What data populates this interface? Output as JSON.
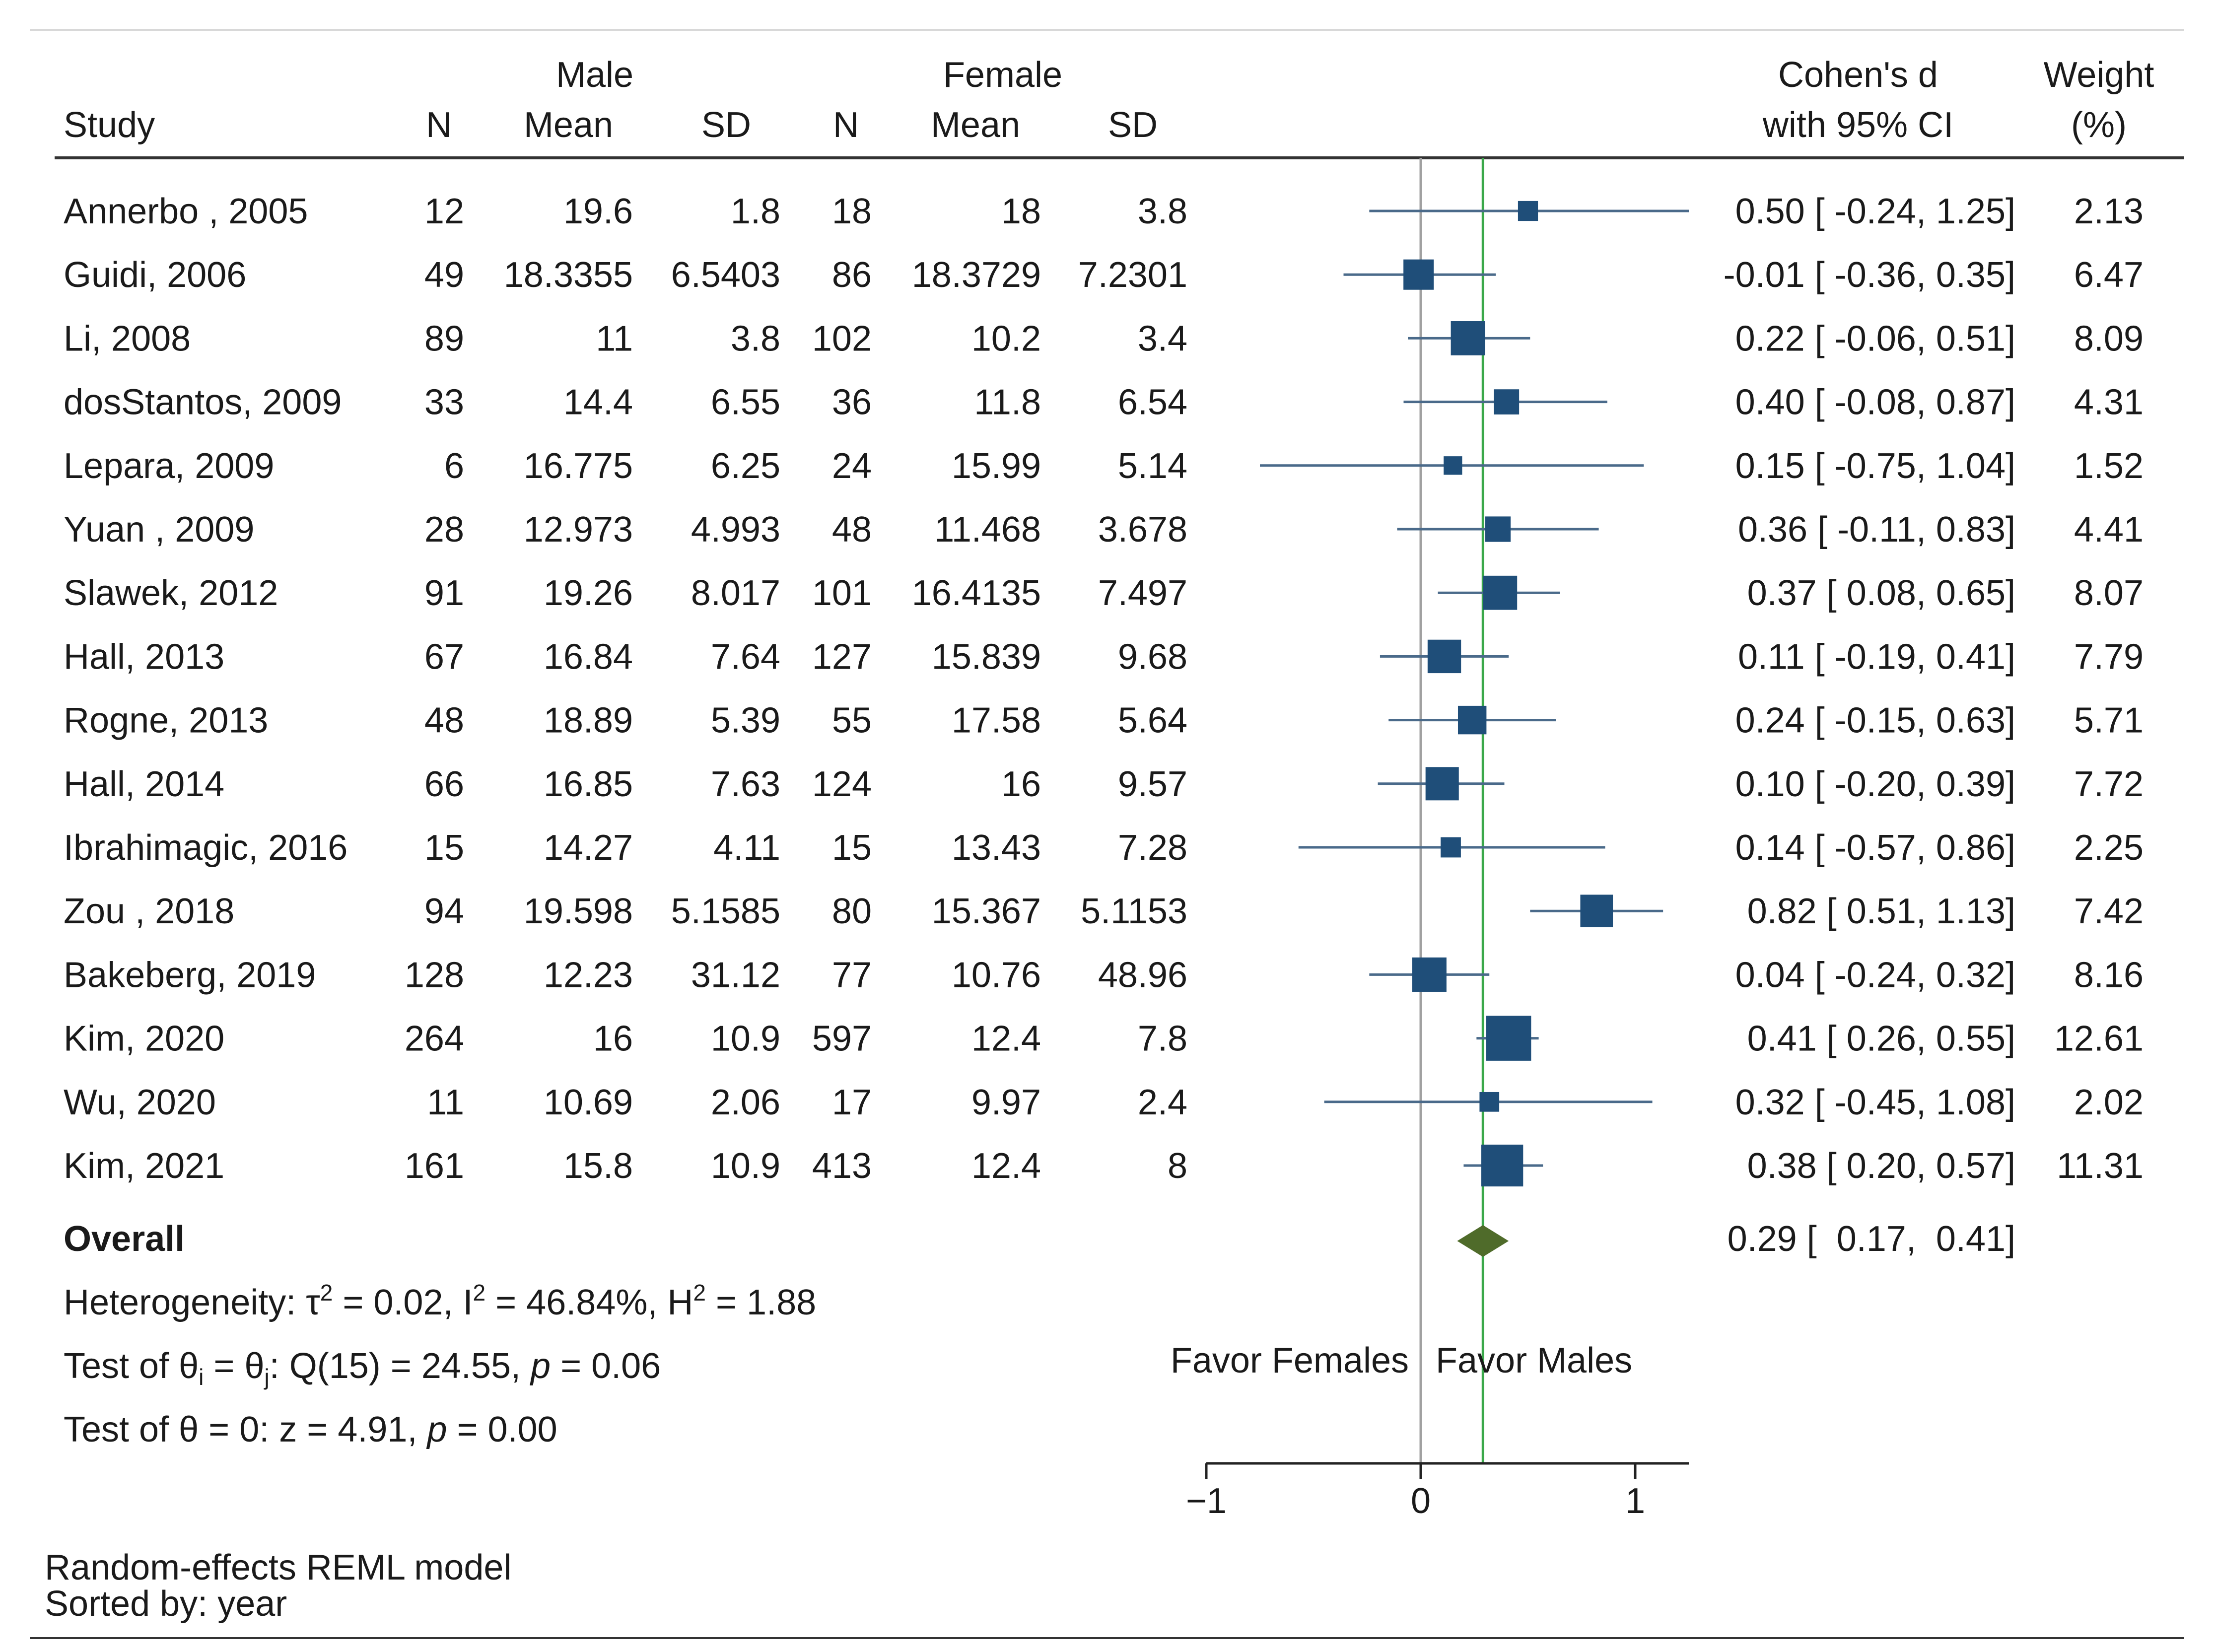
{
  "chart_data": {
    "type": "forest",
    "header": {
      "study": "Study",
      "male": "Male",
      "female": "Female",
      "n": "N",
      "mean": "Mean",
      "sd": "SD",
      "effect_line1": "Cohen's d",
      "effect_line2": "with 95% CI",
      "weight_line1": "Weight",
      "weight_line2": "(%)"
    },
    "studies": [
      {
        "study": "Annerbo , 2005",
        "male_n": "12",
        "male_mean": "19.6",
        "male_sd": "1.8",
        "female_n": "18",
        "female_mean": "18",
        "female_sd": "3.8",
        "d": 0.5,
        "lo": -0.24,
        "hi": 1.25,
        "ci_text": "0.50 [ -0.24,  1.25]",
        "weight": 2.13,
        "weight_text": "2.13"
      },
      {
        "study": "Guidi, 2006",
        "male_n": "49",
        "male_mean": "18.3355",
        "male_sd": "6.5403",
        "female_n": "86",
        "female_mean": "18.3729",
        "female_sd": "7.2301",
        "d": -0.01,
        "lo": -0.36,
        "hi": 0.35,
        "ci_text": "-0.01 [ -0.36,  0.35]",
        "weight": 6.47,
        "weight_text": "6.47"
      },
      {
        "study": "Li, 2008",
        "male_n": "89",
        "male_mean": "11",
        "male_sd": "3.8",
        "female_n": "102",
        "female_mean": "10.2",
        "female_sd": "3.4",
        "d": 0.22,
        "lo": -0.06,
        "hi": 0.51,
        "ci_text": "0.22 [ -0.06,  0.51]",
        "weight": 8.09,
        "weight_text": "8.09"
      },
      {
        "study": "dosStantos, 2009",
        "male_n": "33",
        "male_mean": "14.4",
        "male_sd": "6.55",
        "female_n": "36",
        "female_mean": "11.8",
        "female_sd": "6.54",
        "d": 0.4,
        "lo": -0.08,
        "hi": 0.87,
        "ci_text": "0.40 [ -0.08,  0.87]",
        "weight": 4.31,
        "weight_text": "4.31"
      },
      {
        "study": "Lepara, 2009",
        "male_n": "6",
        "male_mean": "16.775",
        "male_sd": "6.25",
        "female_n": "24",
        "female_mean": "15.99",
        "female_sd": "5.14",
        "d": 0.15,
        "lo": -0.75,
        "hi": 1.04,
        "ci_text": "0.15 [ -0.75,  1.04]",
        "weight": 1.52,
        "weight_text": "1.52"
      },
      {
        "study": "Yuan , 2009",
        "male_n": "28",
        "male_mean": "12.973",
        "male_sd": "4.993",
        "female_n": "48",
        "female_mean": "11.468",
        "female_sd": "3.678",
        "d": 0.36,
        "lo": -0.11,
        "hi": 0.83,
        "ci_text": "0.36 [ -0.11,  0.83]",
        "weight": 4.41,
        "weight_text": "4.41"
      },
      {
        "study": "Slawek, 2012",
        "male_n": "91",
        "male_mean": "19.26",
        "male_sd": "8.017",
        "female_n": "101",
        "female_mean": "16.4135",
        "female_sd": "7.497",
        "d": 0.37,
        "lo": 0.08,
        "hi": 0.65,
        "ci_text": "0.37 [  0.08,  0.65]",
        "weight": 8.07,
        "weight_text": "8.07"
      },
      {
        "study": "Hall, 2013",
        "male_n": "67",
        "male_mean": "16.84",
        "male_sd": "7.64",
        "female_n": "127",
        "female_mean": "15.839",
        "female_sd": "9.68",
        "d": 0.11,
        "lo": -0.19,
        "hi": 0.41,
        "ci_text": "0.11 [ -0.19,  0.41]",
        "weight": 7.79,
        "weight_text": "7.79"
      },
      {
        "study": "Rogne, 2013",
        "male_n": "48",
        "male_mean": "18.89",
        "male_sd": "5.39",
        "female_n": "55",
        "female_mean": "17.58",
        "female_sd": "5.64",
        "d": 0.24,
        "lo": -0.15,
        "hi": 0.63,
        "ci_text": "0.24 [ -0.15,  0.63]",
        "weight": 5.71,
        "weight_text": "5.71"
      },
      {
        "study": "Hall, 2014",
        "male_n": "66",
        "male_mean": "16.85",
        "male_sd": "7.63",
        "female_n": "124",
        "female_mean": "16",
        "female_sd": "9.57",
        "d": 0.1,
        "lo": -0.2,
        "hi": 0.39,
        "ci_text": "0.10 [ -0.20,  0.39]",
        "weight": 7.72,
        "weight_text": "7.72"
      },
      {
        "study": "Ibrahimagic, 2016",
        "male_n": "15",
        "male_mean": "14.27",
        "male_sd": "4.11",
        "female_n": "15",
        "female_mean": "13.43",
        "female_sd": "7.28",
        "d": 0.14,
        "lo": -0.57,
        "hi": 0.86,
        "ci_text": "0.14 [ -0.57,  0.86]",
        "weight": 2.25,
        "weight_text": "2.25"
      },
      {
        "study": "Zou , 2018",
        "male_n": "94",
        "male_mean": "19.598",
        "male_sd": "5.1585",
        "female_n": "80",
        "female_mean": "15.367",
        "female_sd": "5.1153",
        "d": 0.82,
        "lo": 0.51,
        "hi": 1.13,
        "ci_text": "0.82 [  0.51,  1.13]",
        "weight": 7.42,
        "weight_text": "7.42"
      },
      {
        "study": "Bakeberg, 2019",
        "male_n": "128",
        "male_mean": "12.23",
        "male_sd": "31.12",
        "female_n": "77",
        "female_mean": "10.76",
        "female_sd": "48.96",
        "d": 0.04,
        "lo": -0.24,
        "hi": 0.32,
        "ci_text": "0.04 [ -0.24,  0.32]",
        "weight": 8.16,
        "weight_text": "8.16"
      },
      {
        "study": "Kim, 2020",
        "male_n": "264",
        "male_mean": "16",
        "male_sd": "10.9",
        "female_n": "597",
        "female_mean": "12.4",
        "female_sd": "7.8",
        "d": 0.41,
        "lo": 0.26,
        "hi": 0.55,
        "ci_text": "0.41 [  0.26,  0.55]",
        "weight": 12.61,
        "weight_text": "12.61"
      },
      {
        "study": "Wu, 2020",
        "male_n": "11",
        "male_mean": "10.69",
        "male_sd": "2.06",
        "female_n": "17",
        "female_mean": "9.97",
        "female_sd": "2.4",
        "d": 0.32,
        "lo": -0.45,
        "hi": 1.08,
        "ci_text": "0.32 [ -0.45,  1.08]",
        "weight": 2.02,
        "weight_text": "2.02"
      },
      {
        "study": "Kim, 2021",
        "male_n": "161",
        "male_mean": "15.8",
        "male_sd": "10.9",
        "female_n": "413",
        "female_mean": "12.4",
        "female_sd": "8",
        "d": 0.38,
        "lo": 0.2,
        "hi": 0.57,
        "ci_text": "0.38 [  0.20,  0.57]",
        "weight": 11.31,
        "weight_text": "11.31"
      }
    ],
    "overall": {
      "label": "Overall",
      "d": 0.29,
      "lo": 0.17,
      "hi": 0.41,
      "ci_text": "0.29 [  0.17,  0.41]"
    },
    "heterogeneity": {
      "het_prefix": "Heterogeneity: τ",
      "het_tau_sup": "2",
      "het_mid": " = 0.02, I",
      "het_i_sup": "2",
      "het_mid2": " = 46.84%, H",
      "het_h_sup": "2",
      "het_end": " = 1.88",
      "q_prefix": "Test of θ",
      "q_sub_i": "i",
      "q_eq": " = θ",
      "q_sub_j": "j",
      "q_mid": ": Q(15) = 24.55, ",
      "q_p": "p",
      "q_end": " = 0.06",
      "z_prefix": "Test of θ = 0: z = 4.91, ",
      "z_p": "p",
      "z_end": " = 0.00"
    },
    "favor_left": "Favor Females",
    "favor_right": "Favor Males",
    "x_axis": {
      "min": -1,
      "max": 1.25,
      "ticks": [
        -1,
        0,
        1
      ],
      "tick_labels": [
        "−1",
        "0",
        "1"
      ]
    },
    "null_line": 0,
    "footer": {
      "model": "Random-effects REML model",
      "sorted": "Sorted by: year"
    },
    "colors": {
      "marker": "#1f4e79",
      "ci_line": "#4a6a8a",
      "overall_diamond": "#4f6b2a",
      "overall_line": "#3aa84a",
      "null_line": "#a0a0a0",
      "text": "#1a1a1a"
    }
  }
}
